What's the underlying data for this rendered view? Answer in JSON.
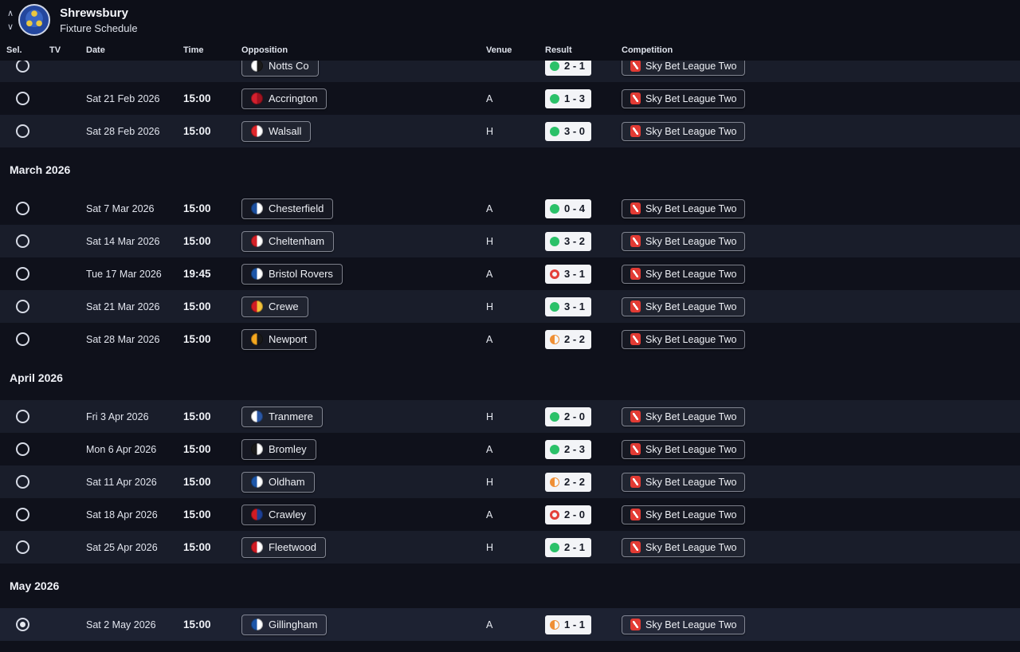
{
  "header": {
    "club_name": "Shrewsbury",
    "view_title": "Fixture Schedule"
  },
  "columns": [
    {
      "key": "sel",
      "label": "Sel."
    },
    {
      "key": "tv",
      "label": "TV"
    },
    {
      "key": "date",
      "label": "Date"
    },
    {
      "key": "time",
      "label": "Time"
    },
    {
      "key": "opposition",
      "label": "Opposition"
    },
    {
      "key": "venue",
      "label": "Venue"
    },
    {
      "key": "result",
      "label": "Result"
    },
    {
      "key": "competition",
      "label": "Competition"
    }
  ],
  "status_colors": {
    "win": "#2bc169",
    "loss": "#e4403a",
    "draw": "#ef8f35"
  },
  "sections": [
    {
      "month": "",
      "rows": [
        {
          "date": "",
          "time": "",
          "opposition": {
            "name": "Notts Co",
            "crest": [
              "#ffffff",
              "#1a1a1a"
            ]
          },
          "venue": "",
          "result": {
            "score": "2 - 1",
            "outcome": "win"
          },
          "competition": "Sky Bet League Two",
          "selected": false
        },
        {
          "date": "Sat 21 Feb 2026",
          "time": "15:00",
          "opposition": {
            "name": "Accrington",
            "crest": [
              "#d4202e",
              "#a01320"
            ]
          },
          "venue": "A",
          "result": {
            "score": "1 - 3",
            "outcome": "win"
          },
          "competition": "Sky Bet League Two",
          "selected": false
        },
        {
          "date": "Sat 28 Feb 2026",
          "time": "15:00",
          "opposition": {
            "name": "Walsall",
            "crest": [
              "#e0262b",
              "#ffffff"
            ]
          },
          "venue": "H",
          "result": {
            "score": "3 - 0",
            "outcome": "win"
          },
          "competition": "Sky Bet League Two",
          "selected": false
        }
      ]
    },
    {
      "month": "March 2026",
      "rows": [
        {
          "date": "Sat 7 Mar 2026",
          "time": "15:00",
          "opposition": {
            "name": "Chesterfield",
            "crest": [
              "#1c4f9e",
              "#ffffff"
            ]
          },
          "venue": "A",
          "result": {
            "score": "0 - 4",
            "outcome": "win"
          },
          "competition": "Sky Bet League Two",
          "selected": false
        },
        {
          "date": "Sat 14 Mar 2026",
          "time": "15:00",
          "opposition": {
            "name": "Cheltenham",
            "crest": [
              "#d42027",
              "#ffffff"
            ]
          },
          "venue": "H",
          "result": {
            "score": "3 - 2",
            "outcome": "win"
          },
          "competition": "Sky Bet League Two",
          "selected": false
        },
        {
          "date": "Tue 17 Mar 2026",
          "time": "19:45",
          "opposition": {
            "name": "Bristol Rovers",
            "crest": [
              "#1d56a8",
              "#ffffff"
            ]
          },
          "venue": "A",
          "result": {
            "score": "3 - 1",
            "outcome": "loss"
          },
          "competition": "Sky Bet League Two",
          "selected": false
        },
        {
          "date": "Sat 21 Mar 2026",
          "time": "15:00",
          "opposition": {
            "name": "Crewe",
            "crest": [
              "#d01c24",
              "#f3c23a"
            ]
          },
          "venue": "H",
          "result": {
            "score": "3 - 1",
            "outcome": "win"
          },
          "competition": "Sky Bet League Two",
          "selected": false
        },
        {
          "date": "Sat 28 Mar 2026",
          "time": "15:00",
          "opposition": {
            "name": "Newport",
            "crest": [
              "#f4a71f",
              "#1a1a1a"
            ]
          },
          "venue": "A",
          "result": {
            "score": "2 - 2",
            "outcome": "draw"
          },
          "competition": "Sky Bet League Two",
          "selected": false
        }
      ]
    },
    {
      "month": "April 2026",
      "rows": [
        {
          "date": "Fri 3 Apr 2026",
          "time": "15:00",
          "opposition": {
            "name": "Tranmere",
            "crest": [
              "#ffffff",
              "#2a57a5"
            ]
          },
          "venue": "H",
          "result": {
            "score": "2 - 0",
            "outcome": "win"
          },
          "competition": "Sky Bet League Two",
          "selected": false
        },
        {
          "date": "Mon 6 Apr 2026",
          "time": "15:00",
          "opposition": {
            "name": "Bromley",
            "crest": [
              "#1a1a1a",
              "#ffffff"
            ]
          },
          "venue": "A",
          "result": {
            "score": "2 - 3",
            "outcome": "win"
          },
          "competition": "Sky Bet League Two",
          "selected": false
        },
        {
          "date": "Sat 11 Apr 2026",
          "time": "15:00",
          "opposition": {
            "name": "Oldham",
            "crest": [
              "#1d56a8",
              "#ffffff"
            ]
          },
          "venue": "H",
          "result": {
            "score": "2 - 2",
            "outcome": "draw"
          },
          "competition": "Sky Bet League Two",
          "selected": false
        },
        {
          "date": "Sat 18 Apr 2026",
          "time": "15:00",
          "opposition": {
            "name": "Crawley",
            "crest": [
              "#d01c24",
              "#1d3f94"
            ]
          },
          "venue": "A",
          "result": {
            "score": "2 - 0",
            "outcome": "loss"
          },
          "competition": "Sky Bet League Two",
          "selected": false
        },
        {
          "date": "Sat 25 Apr 2026",
          "time": "15:00",
          "opposition": {
            "name": "Fleetwood",
            "crest": [
              "#d01c24",
              "#ffffff"
            ]
          },
          "venue": "H",
          "result": {
            "score": "2 - 1",
            "outcome": "win"
          },
          "competition": "Sky Bet League Two",
          "selected": false
        }
      ]
    },
    {
      "month": "May 2026",
      "rows": [
        {
          "date": "Sat 2 May 2026",
          "time": "15:00",
          "opposition": {
            "name": "Gillingham",
            "crest": [
              "#1d56a8",
              "#ffffff"
            ]
          },
          "venue": "A",
          "result": {
            "score": "1 - 1",
            "outcome": "draw"
          },
          "competition": "Sky Bet League Two",
          "selected": true
        }
      ]
    }
  ]
}
